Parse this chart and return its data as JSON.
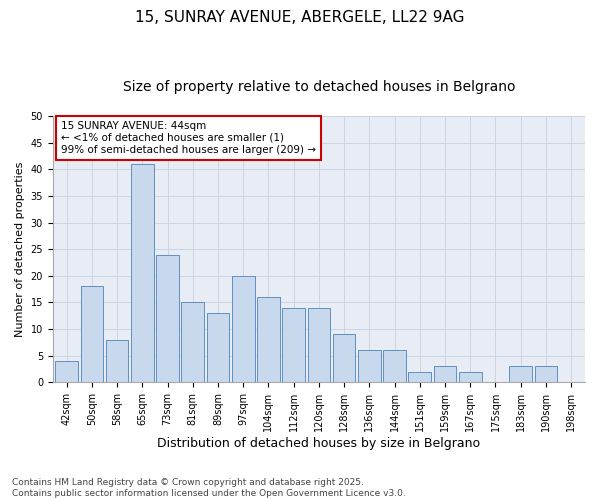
{
  "title1": "15, SUNRAY AVENUE, ABERGELE, LL22 9AG",
  "title2": "Size of property relative to detached houses in Belgrano",
  "xlabel": "Distribution of detached houses by size in Belgrano",
  "ylabel": "Number of detached properties",
  "bins": [
    "42sqm",
    "50sqm",
    "58sqm",
    "65sqm",
    "73sqm",
    "81sqm",
    "89sqm",
    "97sqm",
    "104sqm",
    "112sqm",
    "120sqm",
    "128sqm",
    "136sqm",
    "144sqm",
    "151sqm",
    "159sqm",
    "167sqm",
    "175sqm",
    "183sqm",
    "190sqm",
    "198sqm"
  ],
  "values": [
    4,
    18,
    8,
    41,
    24,
    15,
    13,
    20,
    16,
    14,
    14,
    9,
    6,
    6,
    2,
    3,
    2,
    0,
    3,
    3,
    0
  ],
  "bar_color": "#c8d9ee",
  "bar_edge_color": "#6090c0",
  "annotation_text": "15 SUNRAY AVENUE: 44sqm\n← <1% of detached houses are smaller (1)\n99% of semi-detached houses are larger (209) →",
  "annotation_box_color": "#ffffff",
  "annotation_box_edge_color": "#cc0000",
  "ylim": [
    0,
    50
  ],
  "yticks": [
    0,
    5,
    10,
    15,
    20,
    25,
    30,
    35,
    40,
    45,
    50
  ],
  "grid_color": "#ccd4e4",
  "bg_color": "#e8edf5",
  "footer": "Contains HM Land Registry data © Crown copyright and database right 2025.\nContains public sector information licensed under the Open Government Licence v3.0.",
  "title_fontsize": 11,
  "subtitle_fontsize": 10,
  "axis_label_fontsize": 8,
  "tick_fontsize": 7,
  "annotation_fontsize": 7.5,
  "footer_fontsize": 6.5
}
